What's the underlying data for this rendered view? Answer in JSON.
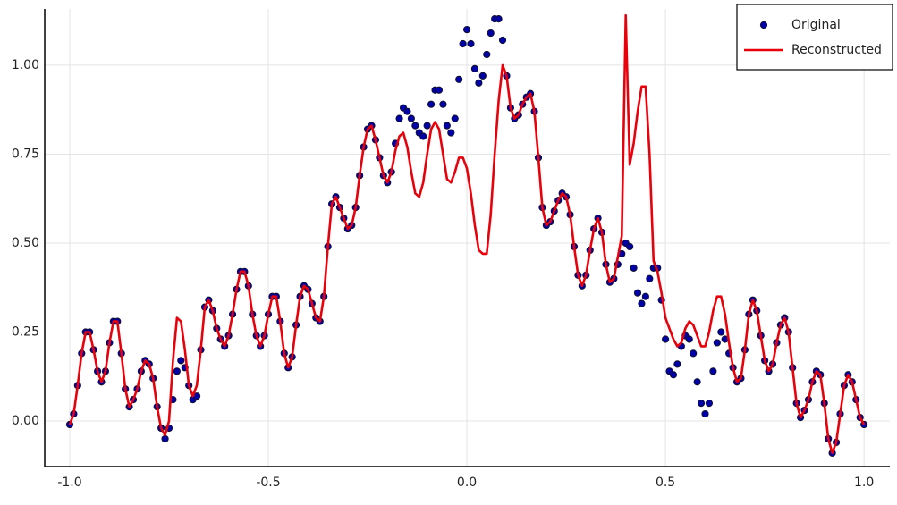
{
  "chart_data": {
    "type": "scatter",
    "x": [
      -1,
      -0.99,
      -0.98,
      -0.97,
      -0.96,
      -0.95,
      -0.94,
      -0.93,
      -0.92,
      -0.91,
      -0.9,
      -0.89,
      -0.88,
      -0.87,
      -0.86,
      -0.85,
      -0.84,
      -0.83,
      -0.82,
      -0.81,
      -0.8,
      -0.79,
      -0.78,
      -0.77,
      -0.76,
      -0.75,
      -0.74,
      -0.73,
      -0.72,
      -0.71,
      -0.7,
      -0.69,
      -0.68,
      -0.67,
      -0.66,
      -0.65,
      -0.64,
      -0.63,
      -0.62,
      -0.61,
      -0.6,
      -0.59,
      -0.58,
      -0.57,
      -0.56,
      -0.55,
      -0.54,
      -0.53,
      -0.52,
      -0.51,
      -0.5,
      -0.49,
      -0.48,
      -0.47,
      -0.46,
      -0.45,
      -0.44,
      -0.43,
      -0.42,
      -0.41,
      -0.4,
      -0.39,
      -0.38,
      -0.37,
      -0.36,
      -0.35,
      -0.34,
      -0.33,
      -0.32,
      -0.31,
      -0.3,
      -0.29,
      -0.28,
      -0.27,
      -0.26,
      -0.25,
      -0.24,
      -0.23,
      -0.22,
      -0.21,
      -0.2,
      -0.19,
      -0.18,
      -0.17,
      -0.16,
      -0.15,
      -0.14,
      -0.13,
      -0.12,
      -0.11,
      -0.1,
      -0.09,
      -0.08,
      -0.07,
      -0.06,
      -0.05,
      -0.04,
      -0.03,
      -0.02,
      -0.01,
      0,
      0.01,
      0.02,
      0.03,
      0.04,
      0.05,
      0.06,
      0.07,
      0.08,
      0.09,
      0.1,
      0.11,
      0.12,
      0.13,
      0.14,
      0.15,
      0.16,
      0.17,
      0.18,
      0.19,
      0.2,
      0.21,
      0.22,
      0.23,
      0.24,
      0.25,
      0.26,
      0.27,
      0.28,
      0.29,
      0.3,
      0.31,
      0.32,
      0.33,
      0.34,
      0.35,
      0.36,
      0.37,
      0.38,
      0.39,
      0.4,
      0.41,
      0.42,
      0.43,
      0.44,
      0.45,
      0.46,
      0.47,
      0.48,
      0.49,
      0.5,
      0.51,
      0.52,
      0.53,
      0.54,
      0.55,
      0.56,
      0.57,
      0.58,
      0.59,
      0.6,
      0.61,
      0.62,
      0.63,
      0.64,
      0.65,
      0.66,
      0.67,
      0.68,
      0.69,
      0.7,
      0.71,
      0.72,
      0.73,
      0.74,
      0.75,
      0.76,
      0.77,
      0.78,
      0.79,
      0.8,
      0.81,
      0.82,
      0.83,
      0.84,
      0.85,
      0.86,
      0.87,
      0.88,
      0.89,
      0.9,
      0.91,
      0.92,
      0.93,
      0.94,
      0.95,
      0.96,
      0.97,
      0.98,
      0.99,
      1
    ],
    "series": [
      {
        "name": "Original",
        "style": "markers",
        "color": "#0000a8",
        "edge": "#111133",
        "values": [
          -0.01,
          0.02,
          0.1,
          0.19,
          0.25,
          0.25,
          0.2,
          0.14,
          0.11,
          0.14,
          0.22,
          0.28,
          0.28,
          0.19,
          0.09,
          0.04,
          0.06,
          0.09,
          0.14,
          0.17,
          0.16,
          0.12,
          0.04,
          -0.02,
          -0.05,
          -0.02,
          0.06,
          0.14,
          0.17,
          0.15,
          0.1,
          0.06,
          0.07,
          0.2,
          0.32,
          0.34,
          0.31,
          0.26,
          0.23,
          0.21,
          0.24,
          0.3,
          0.37,
          0.42,
          0.42,
          0.38,
          0.3,
          0.24,
          0.21,
          0.24,
          0.3,
          0.35,
          0.35,
          0.28,
          0.19,
          0.15,
          0.18,
          0.27,
          0.35,
          0.38,
          0.37,
          0.33,
          0.29,
          0.28,
          0.35,
          0.49,
          0.61,
          0.63,
          0.6,
          0.57,
          0.54,
          0.55,
          0.6,
          0.69,
          0.77,
          0.82,
          0.83,
          0.79,
          0.74,
          0.69,
          0.67,
          0.7,
          0.78,
          0.85,
          0.88,
          0.87,
          0.85,
          0.83,
          0.81,
          0.8,
          0.83,
          0.89,
          0.93,
          0.93,
          0.89,
          0.83,
          0.81,
          0.85,
          0.96,
          1.06,
          1.1,
          1.06,
          0.99,
          0.95,
          0.97,
          1.03,
          1.09,
          1.13,
          1.13,
          1.07,
          0.97,
          0.88,
          0.85,
          0.86,
          0.89,
          0.91,
          0.92,
          0.87,
          0.74,
          0.6,
          0.55,
          0.56,
          0.59,
          0.62,
          0.64,
          0.63,
          0.58,
          0.49,
          0.41,
          0.38,
          0.41,
          0.48,
          0.54,
          0.57,
          0.53,
          0.44,
          0.39,
          0.4,
          0.44,
          0.47,
          0.5,
          0.49,
          0.43,
          0.36,
          0.33,
          0.35,
          0.4,
          0.43,
          0.43,
          0.34,
          0.23,
          0.14,
          0.13,
          0.16,
          0.21,
          0.24,
          0.23,
          0.19,
          0.11,
          0.05,
          0.02,
          0.05,
          0.14,
          0.22,
          0.25,
          0.23,
          0.19,
          0.15,
          0.11,
          0.12,
          0.2,
          0.3,
          0.34,
          0.31,
          0.24,
          0.17,
          0.14,
          0.16,
          0.22,
          0.27,
          0.29,
          0.25,
          0.15,
          0.05,
          0.01,
          0.03,
          0.06,
          0.11,
          0.14,
          0.13,
          0.05,
          -0.05,
          -0.09,
          -0.06,
          0.02,
          0.1,
          0.13,
          0.11,
          0.06,
          0.01,
          -0.01
        ]
      },
      {
        "name": "Reconstructed",
        "style": "line",
        "color": "#e8000b",
        "values": [
          -0.01,
          0.02,
          0.1,
          0.19,
          0.25,
          0.25,
          0.2,
          0.14,
          0.11,
          0.14,
          0.22,
          0.28,
          0.28,
          0.19,
          0.09,
          0.04,
          0.06,
          0.09,
          0.14,
          0.17,
          0.16,
          0.12,
          0.04,
          -0.02,
          -0.04,
          0.0,
          0.17,
          0.29,
          0.28,
          0.2,
          0.1,
          0.07,
          0.1,
          0.2,
          0.32,
          0.34,
          0.31,
          0.26,
          0.23,
          0.21,
          0.24,
          0.3,
          0.37,
          0.42,
          0.42,
          0.38,
          0.3,
          0.24,
          0.21,
          0.24,
          0.3,
          0.35,
          0.35,
          0.28,
          0.19,
          0.15,
          0.18,
          0.27,
          0.35,
          0.38,
          0.37,
          0.33,
          0.29,
          0.28,
          0.35,
          0.49,
          0.61,
          0.63,
          0.6,
          0.57,
          0.54,
          0.55,
          0.6,
          0.69,
          0.77,
          0.82,
          0.83,
          0.79,
          0.74,
          0.69,
          0.67,
          0.7,
          0.76,
          0.8,
          0.81,
          0.77,
          0.7,
          0.64,
          0.63,
          0.67,
          0.75,
          0.82,
          0.84,
          0.82,
          0.75,
          0.68,
          0.67,
          0.7,
          0.74,
          0.74,
          0.71,
          0.64,
          0.55,
          0.48,
          0.47,
          0.47,
          0.58,
          0.75,
          0.9,
          1.0,
          0.97,
          0.88,
          0.85,
          0.86,
          0.89,
          0.91,
          0.92,
          0.87,
          0.74,
          0.6,
          0.55,
          0.56,
          0.59,
          0.62,
          0.64,
          0.63,
          0.58,
          0.49,
          0.41,
          0.38,
          0.41,
          0.48,
          0.54,
          0.57,
          0.53,
          0.44,
          0.39,
          0.4,
          0.46,
          0.52,
          1.14,
          0.72,
          0.78,
          0.87,
          0.94,
          0.94,
          0.75,
          0.45,
          0.42,
          0.36,
          0.29,
          0.26,
          0.23,
          0.21,
          0.22,
          0.26,
          0.28,
          0.27,
          0.24,
          0.21,
          0.21,
          0.25,
          0.31,
          0.35,
          0.35,
          0.3,
          0.22,
          0.15,
          0.11,
          0.12,
          0.2,
          0.3,
          0.34,
          0.31,
          0.24,
          0.17,
          0.14,
          0.16,
          0.22,
          0.27,
          0.29,
          0.25,
          0.15,
          0.05,
          0.01,
          0.03,
          0.06,
          0.11,
          0.14,
          0.13,
          0.05,
          -0.05,
          -0.09,
          -0.06,
          0.02,
          0.1,
          0.13,
          0.11,
          0.06,
          0.01,
          -0.01
        ]
      }
    ],
    "xlim": [
      -1.063,
      1.065
    ],
    "xticks": [
      {
        "value": -1,
        "label": "-1.0"
      },
      {
        "value": -0.5,
        "label": "-0.5"
      },
      {
        "value": 0,
        "label": "0.0"
      },
      {
        "value": 0.5,
        "label": "0.5"
      },
      {
        "value": 1,
        "label": "1.0"
      }
    ],
    "ylim": [
      -0.128,
      1.158
    ],
    "yticks": [
      {
        "value": 0,
        "label": "0.00"
      },
      {
        "value": 0.25,
        "label": "0.25"
      },
      {
        "value": 0.5,
        "label": "0.50"
      },
      {
        "value": 0.75,
        "label": "0.75"
      },
      {
        "value": 1,
        "label": "1.00"
      }
    ],
    "grid": true,
    "legend": "upper right"
  }
}
